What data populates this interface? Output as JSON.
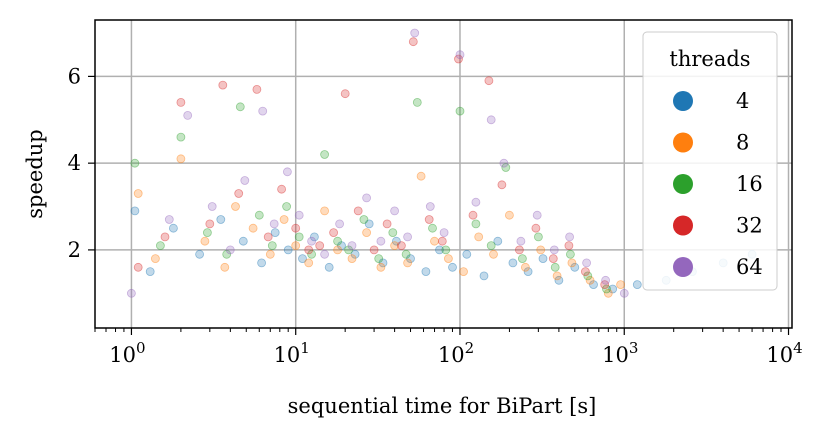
{
  "chart_data": {
    "type": "scatter",
    "title": "",
    "xlabel": "sequential time for BiPart [s]",
    "ylabel": "speedup",
    "xscale": "log",
    "xlim": [
      0.6,
      10500
    ],
    "ylim": [
      0.2,
      7.3
    ],
    "x_ticks": [
      {
        "value": 1,
        "base": "10",
        "exp": "0"
      },
      {
        "value": 10,
        "base": "10",
        "exp": "1"
      },
      {
        "value": 100,
        "base": "10",
        "exp": "2"
      },
      {
        "value": 1000,
        "base": "10",
        "exp": "3"
      },
      {
        "value": 10000,
        "base": "10",
        "exp": "4"
      }
    ],
    "y_ticks": [
      {
        "value": 2,
        "label": "2"
      },
      {
        "value": 4,
        "label": "4"
      },
      {
        "value": 6,
        "label": "6"
      }
    ],
    "grid": true,
    "legend": {
      "title": "threads",
      "position": "top-right",
      "entries": [
        {
          "label": "4",
          "color": "#1f77b4"
        },
        {
          "label": "8",
          "color": "#ff7f0e"
        },
        {
          "label": "16",
          "color": "#2ca02c"
        },
        {
          "label": "32",
          "color": "#d62728"
        },
        {
          "label": "64",
          "color": "#9467bd"
        }
      ]
    },
    "series": [
      {
        "name": "4",
        "color": "#1f77b4",
        "points": [
          [
            1.05,
            2.9
          ],
          [
            1.3,
            1.5
          ],
          [
            1.8,
            2.5
          ],
          [
            2.6,
            1.9
          ],
          [
            3.5,
            2.7
          ],
          [
            4.8,
            2.2
          ],
          [
            6.2,
            1.7
          ],
          [
            7.5,
            2.4
          ],
          [
            9,
            2.0
          ],
          [
            11,
            1.8
          ],
          [
            13,
            2.3
          ],
          [
            16,
            1.6
          ],
          [
            19,
            2.1
          ],
          [
            23,
            1.9
          ],
          [
            28,
            2.6
          ],
          [
            34,
            1.7
          ],
          [
            41,
            2.2
          ],
          [
            50,
            1.8
          ],
          [
            62,
            1.5
          ],
          [
            75,
            2.0
          ],
          [
            90,
            1.6
          ],
          [
            110,
            1.9
          ],
          [
            140,
            1.4
          ],
          [
            170,
            2.2
          ],
          [
            210,
            1.7
          ],
          [
            260,
            1.5
          ],
          [
            320,
            1.8
          ],
          [
            400,
            1.3
          ],
          [
            500,
            1.6
          ],
          [
            650,
            1.2
          ],
          [
            850,
            1.1
          ],
          [
            1200,
            1.2
          ],
          [
            1800,
            1.3
          ],
          [
            2600,
            1.5
          ],
          [
            4000,
            1.7
          ],
          [
            6000,
            1.9
          ]
        ]
      },
      {
        "name": "8",
        "color": "#ff7f0e",
        "points": [
          [
            1.1,
            3.3
          ],
          [
            1.4,
            1.8
          ],
          [
            2.0,
            4.1
          ],
          [
            2.8,
            2.2
          ],
          [
            3.7,
            1.6
          ],
          [
            4.3,
            3.0
          ],
          [
            5.5,
            2.5
          ],
          [
            7,
            1.9
          ],
          [
            8.5,
            2.7
          ],
          [
            10,
            2.1
          ],
          [
            12,
            1.7
          ],
          [
            15,
            2.9
          ],
          [
            18,
            2.0
          ],
          [
            22,
            1.8
          ],
          [
            27,
            2.4
          ],
          [
            33,
            1.6
          ],
          [
            40,
            2.1
          ],
          [
            48,
            1.7
          ],
          [
            58,
            3.7
          ],
          [
            70,
            2.2
          ],
          [
            85,
            1.8
          ],
          [
            105,
            1.5
          ],
          [
            130,
            2.3
          ],
          [
            160,
            1.9
          ],
          [
            200,
            2.8
          ],
          [
            250,
            1.6
          ],
          [
            310,
            2.0
          ],
          [
            390,
            1.4
          ],
          [
            480,
            1.7
          ],
          [
            620,
            1.3
          ],
          [
            800,
            1.0
          ],
          [
            950,
            1.2
          ]
        ]
      },
      {
        "name": "16",
        "color": "#2ca02c",
        "points": [
          [
            1.05,
            4.0
          ],
          [
            1.5,
            2.1
          ],
          [
            2.0,
            4.6
          ],
          [
            2.9,
            2.4
          ],
          [
            3.8,
            1.9
          ],
          [
            4.6,
            5.3
          ],
          [
            6,
            2.8
          ],
          [
            7.2,
            2.1
          ],
          [
            8.8,
            3.0
          ],
          [
            10.5,
            2.3
          ],
          [
            12.5,
            1.9
          ],
          [
            15,
            4.2
          ],
          [
            18,
            2.2
          ],
          [
            21,
            2.0
          ],
          [
            26,
            2.7
          ],
          [
            32,
            1.8
          ],
          [
            39,
            2.4
          ],
          [
            47,
            1.9
          ],
          [
            55,
            5.4
          ],
          [
            68,
            2.5
          ],
          [
            82,
            2.0
          ],
          [
            100,
            5.2
          ],
          [
            125,
            2.6
          ],
          [
            155,
            2.1
          ],
          [
            190,
            3.9
          ],
          [
            240,
            1.8
          ],
          [
            300,
            2.3
          ],
          [
            380,
            1.6
          ],
          [
            470,
            1.9
          ],
          [
            600,
            1.4
          ],
          [
            780,
            1.1
          ]
        ]
      },
      {
        "name": "32",
        "color": "#d62728",
        "points": [
          [
            1.1,
            1.6
          ],
          [
            1.6,
            2.3
          ],
          [
            2.0,
            5.4
          ],
          [
            3.0,
            2.6
          ],
          [
            3.6,
            5.8
          ],
          [
            4.5,
            3.3
          ],
          [
            5.8,
            5.7
          ],
          [
            6.8,
            2.3
          ],
          [
            8.2,
            3.4
          ],
          [
            10,
            2.5
          ],
          [
            12,
            2.0
          ],
          [
            14,
            2.1
          ],
          [
            17,
            2.4
          ],
          [
            20,
            5.6
          ],
          [
            24,
            2.9
          ],
          [
            30,
            2.0
          ],
          [
            36,
            2.6
          ],
          [
            44,
            2.1
          ],
          [
            52,
            6.8
          ],
          [
            65,
            2.7
          ],
          [
            78,
            2.2
          ],
          [
            98,
            6.4
          ],
          [
            120,
            2.8
          ],
          [
            150,
            5.9
          ],
          [
            180,
            3.5
          ],
          [
            230,
            2.0
          ],
          [
            290,
            2.5
          ],
          [
            370,
            1.8
          ],
          [
            460,
            2.1
          ],
          [
            580,
            1.5
          ],
          [
            760,
            1.2
          ]
        ]
      },
      {
        "name": "64",
        "color": "#9467bd",
        "points": [
          [
            1.0,
            1.0
          ],
          [
            1.7,
            2.7
          ],
          [
            2.2,
            5.1
          ],
          [
            3.1,
            3.0
          ],
          [
            4.0,
            2.0
          ],
          [
            4.9,
            3.6
          ],
          [
            6.3,
            5.2
          ],
          [
            7.4,
            2.6
          ],
          [
            8.9,
            3.8
          ],
          [
            10.5,
            2.8
          ],
          [
            12.5,
            2.2
          ],
          [
            15,
            1.9
          ],
          [
            18.5,
            2.6
          ],
          [
            22,
            2.1
          ],
          [
            27,
            3.2
          ],
          [
            33,
            2.2
          ],
          [
            40,
            2.9
          ],
          [
            48,
            2.3
          ],
          [
            53,
            7.0
          ],
          [
            66,
            3.0
          ],
          [
            80,
            2.4
          ],
          [
            100,
            6.5
          ],
          [
            125,
            3.1
          ],
          [
            155,
            5.0
          ],
          [
            185,
            4.0
          ],
          [
            235,
            2.2
          ],
          [
            295,
            2.8
          ],
          [
            375,
            2.0
          ],
          [
            465,
            2.3
          ],
          [
            590,
            1.7
          ],
          [
            770,
            1.3
          ],
          [
            1000,
            1.0
          ]
        ]
      }
    ]
  }
}
